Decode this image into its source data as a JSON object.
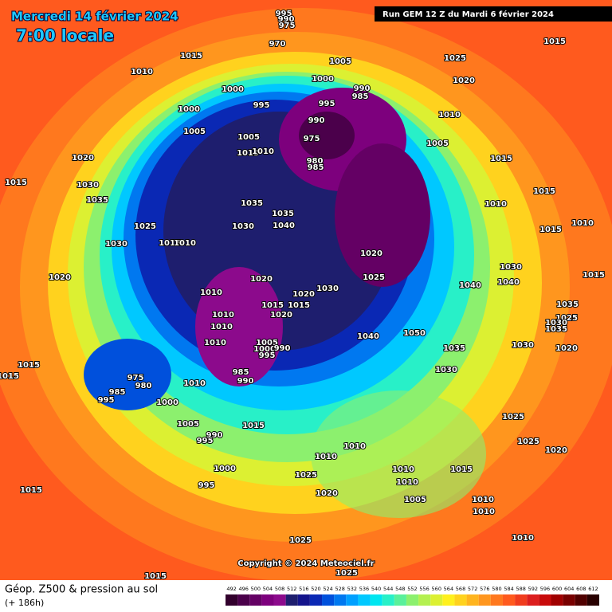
{
  "header": {
    "title": "Mercredi 14 février 2024",
    "time": "7:00 locale",
    "run": "Run GEM 12 Z du Mardi 6 février 2024"
  },
  "copyright": "Copyright © 2024 Meteociel.fr",
  "legend": {
    "title": "Géop. Z500 & pression au sol",
    "lead": "(+ 186h)",
    "ticks": [
      492,
      496,
      500,
      504,
      508,
      512,
      516,
      520,
      524,
      528,
      532,
      536,
      540,
      544,
      548,
      552,
      556,
      560,
      564,
      568,
      572,
      576,
      580,
      584,
      588,
      592,
      596,
      600,
      604,
      608,
      612
    ],
    "colors": [
      "#32002d",
      "#4b004b",
      "#640064",
      "#7d007d",
      "#8c0a8c",
      "#1e1e6e",
      "#14148c",
      "#0a28b4",
      "#0050dc",
      "#0078f0",
      "#00a0ff",
      "#00c8ff",
      "#00e6f0",
      "#28f0c8",
      "#5af09b",
      "#8cf06e",
      "#b4f050",
      "#dcf032",
      "#fff01e",
      "#ffd21e",
      "#ffb41e",
      "#ff961e",
      "#ff781e",
      "#ff5a1e",
      "#f03c1e",
      "#dc1e1e",
      "#c80a0a",
      "#a00000",
      "#780000",
      "#500000",
      "#280000"
    ]
  },
  "isobar_labels": [
    1015,
    1010,
    1000,
    995,
    1000,
    1005,
    1005,
    1015,
    1010,
    1020,
    1015,
    1030,
    1035,
    1025,
    1030,
    1015,
    1010,
    1030,
    1035,
    1035,
    1040,
    1020,
    1010,
    1020,
    1015,
    1015,
    1020,
    1030,
    1020,
    1010,
    1010,
    1010,
    1040,
    1050,
    1035,
    1030,
    1015,
    1005,
    1000,
    995,
    990,
    985,
    990,
    975,
    980,
    985,
    995,
    1010,
    1000,
    1005,
    995,
    990,
    1015,
    1000,
    995,
    1015,
    1025,
    1020,
    1010,
    1010,
    1010,
    1010,
    1005,
    1015,
    1010,
    1010,
    1025,
    1010,
    1025,
    1015,
    1025,
    1025,
    1020,
    1015,
    1035,
    1025,
    1030,
    1035,
    1020,
    1030,
    1040,
    1030,
    1040,
    1015,
    1010,
    1015,
    1015,
    1010,
    1015,
    1005,
    1010,
    1020,
    1025,
    1015,
    1005,
    1000,
    995,
    990,
    985,
    990,
    975,
    980,
    985,
    1020,
    1025,
    995,
    990,
    975,
    970
  ]
}
